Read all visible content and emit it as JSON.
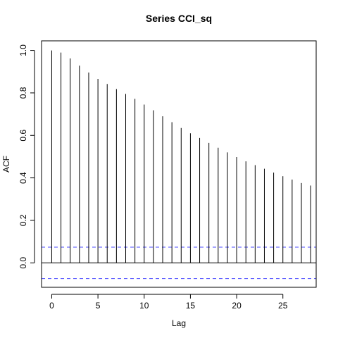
{
  "chart_data": {
    "type": "bar",
    "title": "Series  CCI_sq",
    "xlabel": "Lag",
    "ylabel": "ACF",
    "x_ticks": [
      0,
      5,
      10,
      15,
      20,
      25
    ],
    "y_ticks": [
      "0.0",
      "0.2",
      "0.4",
      "0.6",
      "0.8",
      "1.0"
    ],
    "xlim": [
      -1.1,
      28.6
    ],
    "ylim": [
      -0.115,
      1.045
    ],
    "lags": [
      0,
      1,
      2,
      3,
      4,
      5,
      6,
      7,
      8,
      9,
      10,
      11,
      12,
      13,
      14,
      15,
      16,
      17,
      18,
      19,
      20,
      21,
      22,
      23,
      24,
      25,
      26,
      27,
      28
    ],
    "acf": [
      1.0,
      0.99,
      0.962,
      0.928,
      0.896,
      0.866,
      0.842,
      0.818,
      0.795,
      0.772,
      0.745,
      0.718,
      0.69,
      0.662,
      0.635,
      0.61,
      0.588,
      0.565,
      0.542,
      0.52,
      0.498,
      0.478,
      0.46,
      0.443,
      0.425,
      0.408,
      0.392,
      0.376,
      0.364
    ],
    "confidence_bound": 0.074,
    "colors": {
      "bars": "#000000",
      "confidence": "#4d4dff",
      "axis": "#000000"
    }
  }
}
